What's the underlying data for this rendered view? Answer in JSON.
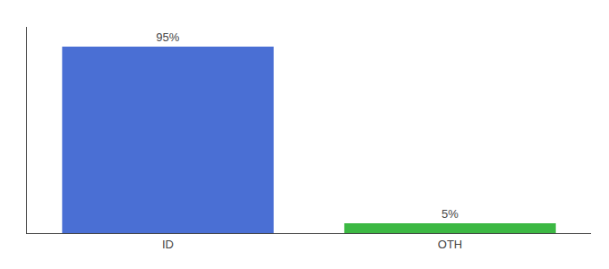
{
  "chart_data": {
    "type": "bar",
    "categories": [
      "ID",
      "OTH"
    ],
    "values": [
      95,
      5
    ],
    "value_labels": [
      "95%",
      "5%"
    ],
    "colors": [
      "#4a6fd4",
      "#3cb843"
    ],
    "ylim": [
      0,
      105
    ],
    "grid": false,
    "data_labels": true,
    "tick_labels": "x"
  }
}
